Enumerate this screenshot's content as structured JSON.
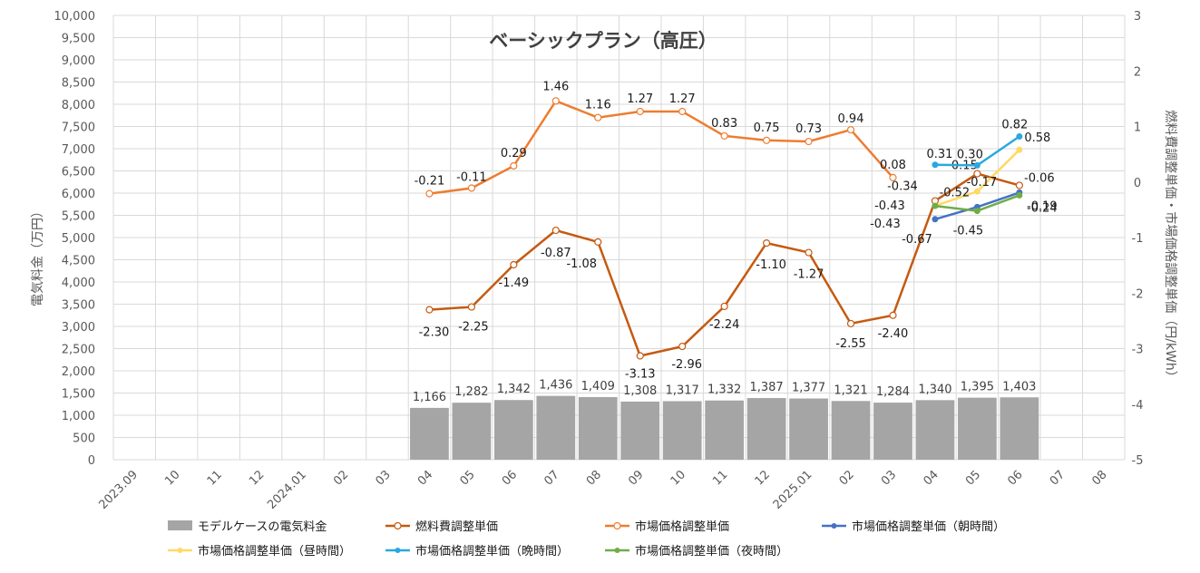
{
  "chart_data": {
    "type": "bar",
    "title": "ベーシックプラン（高圧）",
    "ylabel_left": "電気料金（万円）",
    "ylabel_right": "燃料費調整単価・市場価格調整単価（円/kWh）",
    "ylim_left": [
      0,
      10000
    ],
    "ylim_right": [
      -5,
      3
    ],
    "yticks_left": [
      "0",
      "500",
      "1,000",
      "1,500",
      "2,000",
      "2,500",
      "3,000",
      "3,500",
      "4,000",
      "4,500",
      "5,000",
      "5,500",
      "6,000",
      "6,500",
      "7,000",
      "7,500",
      "8,000",
      "8,500",
      "9,000",
      "9,500",
      "10,000"
    ],
    "yticks_right": [
      "-5",
      "-4",
      "-3",
      "-2",
      "-1",
      "0",
      "1",
      "2",
      "3"
    ],
    "categories": [
      "2023.09",
      "10",
      "11",
      "12",
      "2024.01",
      "02",
      "03",
      "04",
      "05",
      "06",
      "07",
      "08",
      "09",
      "10",
      "11",
      "12",
      "2025.01",
      "02",
      "03",
      "04",
      "05",
      "06",
      "07",
      "08"
    ],
    "grid": true,
    "legend_position": "bottom",
    "series": [
      {
        "name": "モデルケースの電気料金",
        "type": "bar",
        "axis": "left",
        "color": "#a5a5a5",
        "values": [
          null,
          null,
          null,
          null,
          null,
          null,
          null,
          1166,
          1282,
          1342,
          1436,
          1409,
          1308,
          1317,
          1332,
          1387,
          1377,
          1321,
          1284,
          1340,
          1395,
          1403,
          null,
          null
        ],
        "labels": [
          "",
          "",
          "",
          "",
          "",
          "",
          "",
          "1,166",
          "1,282",
          "1,342",
          "1,436",
          "1,409",
          "1,308",
          "1,317",
          "1,332",
          "1,387",
          "1,377",
          "1,321",
          "1,284",
          "1,340",
          "1,395",
          "1,403",
          "",
          ""
        ]
      },
      {
        "name": "燃料費調整単価",
        "type": "line",
        "axis": "right",
        "color": "#c55a11",
        "marker": "hollow",
        "values": [
          null,
          null,
          null,
          null,
          null,
          null,
          null,
          -2.3,
          -2.25,
          -1.49,
          -0.87,
          -1.08,
          -3.13,
          -2.96,
          -2.24,
          -1.1,
          -1.27,
          -2.55,
          -2.4,
          -0.34,
          0.15,
          -0.06,
          null,
          null
        ],
        "labels": [
          "",
          "",
          "",
          "",
          "",
          "",
          "",
          "-2.30",
          "-2.25",
          "-1.49",
          "-0.87",
          "-1.08",
          "-3.13",
          "-2.96",
          "-2.24",
          "-1.10",
          "-1.27",
          "-2.55",
          "-2.40",
          "-0.34",
          "0.15",
          "-0.06",
          "",
          ""
        ]
      },
      {
        "name": "市場価格調整単価",
        "type": "line",
        "axis": "right",
        "color": "#ed7d31",
        "marker": "hollow",
        "values": [
          null,
          null,
          null,
          null,
          null,
          null,
          null,
          -0.21,
          -0.11,
          0.29,
          1.46,
          1.16,
          1.27,
          1.27,
          0.83,
          0.75,
          0.73,
          0.94,
          0.08,
          null,
          null,
          null,
          null,
          null
        ],
        "labels": [
          "",
          "",
          "",
          "",
          "",
          "",
          "",
          "-0.21",
          "-0.11",
          "0.29",
          "1.46",
          "1.16",
          "1.27",
          "1.27",
          "0.83",
          "0.75",
          "0.73",
          "0.94",
          "0.08",
          "",
          "",
          "",
          "",
          ""
        ]
      },
      {
        "name": "市場価格調整単価（朝時間）",
        "type": "line",
        "axis": "right",
        "color": "#4472c4",
        "marker": "filled",
        "values": [
          null,
          null,
          null,
          null,
          null,
          null,
          null,
          null,
          null,
          null,
          null,
          null,
          null,
          null,
          null,
          null,
          null,
          null,
          null,
          -0.67,
          -0.45,
          -0.19,
          null,
          null
        ],
        "labels": [
          "",
          "",
          "",
          "",
          "",
          "",
          "",
          "",
          "",
          "",
          "",
          "",
          "",
          "",
          "",
          "",
          "",
          "",
          "",
          "-0.67",
          "-0.45",
          "-0.19",
          "",
          ""
        ]
      },
      {
        "name": "市場価格調整単価（昼時間）",
        "type": "line",
        "axis": "right",
        "color": "#ffd966",
        "marker": "filled",
        "values": [
          null,
          null,
          null,
          null,
          null,
          null,
          null,
          null,
          null,
          null,
          null,
          null,
          null,
          null,
          null,
          null,
          null,
          null,
          null,
          -0.43,
          -0.17,
          0.58,
          null,
          null
        ],
        "labels": [
          "",
          "",
          "",
          "",
          "",
          "",
          "",
          "",
          "",
          "",
          "",
          "",
          "",
          "",
          "",
          "",
          "",
          "",
          "",
          "-0.43",
          "-0.17",
          "0.58",
          "",
          ""
        ]
      },
      {
        "name": "市場価格調整単価（晩時間）",
        "type": "line",
        "axis": "right",
        "color": "#29a8e0",
        "marker": "filled",
        "values": [
          null,
          null,
          null,
          null,
          null,
          null,
          null,
          null,
          null,
          null,
          null,
          null,
          null,
          null,
          null,
          null,
          null,
          null,
          null,
          0.31,
          0.3,
          0.82,
          null,
          null
        ],
        "labels": [
          "",
          "",
          "",
          "",
          "",
          "",
          "",
          "",
          "",
          "",
          "",
          "",
          "",
          "",
          "",
          "",
          "",
          "",
          "",
          "0.31",
          "0.30",
          "0.82",
          "",
          ""
        ]
      },
      {
        "name": "市場価格調整単価（夜時間）",
        "type": "line",
        "axis": "right",
        "color": "#70ad47",
        "marker": "filled",
        "values": [
          null,
          null,
          null,
          null,
          null,
          null,
          null,
          null,
          null,
          null,
          null,
          null,
          null,
          null,
          null,
          null,
          null,
          null,
          null,
          -0.43,
          -0.52,
          -0.24,
          null,
          null
        ],
        "labels": [
          "",
          "",
          "",
          "",
          "",
          "",
          "",
          "",
          "",
          "",
          "",
          "",
          "",
          "",
          "",
          "",
          "",
          "",
          "",
          "-0.43",
          "-0.52",
          "-0.24",
          "",
          ""
        ]
      }
    ]
  }
}
